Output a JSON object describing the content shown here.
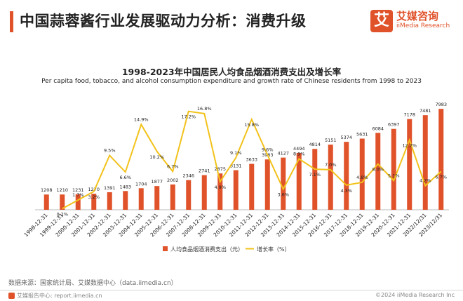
{
  "header": {
    "title": "中国蒜蓉酱行业发展驱动力分析：消费升级",
    "logo_char": "艾",
    "logo_cn": "艾媒咨询",
    "logo_en": "iiMedia Research"
  },
  "colors": {
    "accent": "#e0522a",
    "bar": "#e0522a",
    "line": "#f2c21b"
  },
  "chart_data": {
    "type": "bar",
    "title": "1998-2023年中国居民人均食品烟酒消费支出及增长率",
    "subtitle": "Per capita food, tobacco, and alcohol consumption expenditure and growth rate of Chinese residents from 1998 to 2023",
    "categories": [
      "1998-12-31",
      "1999-12-31",
      "2000-12-31",
      "2001-12-31",
      "2002-12-31",
      "2003-12-31",
      "2004-12-31",
      "2005-12-31",
      "2006-12-31",
      "2007-12-31",
      "2008-12-31",
      "2009-12-31",
      "2010-12-31",
      "2011-12-31",
      "2012-12-31",
      "2013-12-31",
      "2014-12-31",
      "2015-12-31",
      "2016-12-31",
      "2017-12-31",
      "2018-12-31",
      "2019-12-31",
      "2020-12-31",
      "2021-12-31",
      "2022/12/31",
      "2023/12/31"
    ],
    "series": [
      {
        "name": "人均食品烟酒消费支出（元）",
        "type": "bar",
        "values": [
          1208,
          1210,
          1231,
          1270,
          1391,
          1483,
          1704,
          1877,
          2002,
          2346,
          2741,
          2875,
          3131,
          3633,
          3983,
          4127,
          4494,
          4814,
          5151,
          5374,
          5631,
          6084,
          6397,
          7178,
          7481,
          7983
        ],
        "labels": [
          "1208",
          "1210",
          "1231",
          "1270",
          "1391",
          "1483",
          "1704",
          "1877",
          "2002",
          "2346",
          "2741",
          "2875",
          "3131",
          "3633",
          "3983",
          "4127",
          "4494",
          "4814",
          "5151",
          "5374",
          "5631",
          "6084",
          "6397",
          "7178",
          "7481",
          "7983"
        ]
      },
      {
        "name": "增长率（%）",
        "type": "line",
        "values": [
          null,
          0.2,
          1.7,
          3.2,
          9.5,
          6.6,
          14.9,
          10.2,
          6.7,
          17.2,
          16.8,
          4.9,
          9.1,
          15.8,
          9.6,
          3.6,
          8.9,
          7.1,
          7.0,
          4.3,
          4.8,
          8.0,
          5.1,
          12.2,
          4.2,
          6.7
        ],
        "labels": [
          "",
          "0.2%",
          "1.7%",
          "3.2%",
          "9.5%",
          "6.6%",
          "14.9%",
          "10.2%",
          "6.7%",
          "17.2%",
          "16.8%",
          "4.9%",
          "9.1%",
          "15.8%",
          "9.6%",
          "3.6%",
          "8.9%",
          "7.1%",
          "7.0%",
          "4.3%",
          "4.8%",
          "8.0%",
          "5.1%",
          "12.2%",
          "4.2%",
          "6.7%"
        ]
      }
    ],
    "legend_position": "bottom",
    "grid": false
  },
  "footer": {
    "source": "数据来源：国家统计局、艾媒数据中心（data.iimedia.cn）",
    "left": "艾媒报告中心: report.iimedia.cn",
    "right": "©2024 iiMedia Research Inc"
  }
}
